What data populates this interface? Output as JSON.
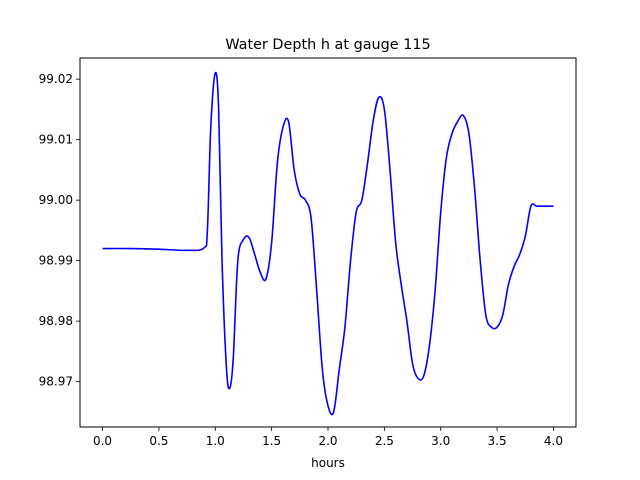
{
  "chart_data": {
    "type": "line",
    "title": "Water Depth h at gauge 115",
    "xlabel": "hours",
    "ylabel": "",
    "xlim": [
      -0.2,
      4.2
    ],
    "ylim": [
      98.9625,
      99.0235
    ],
    "xticks": [
      0.0,
      0.5,
      1.0,
      1.5,
      2.0,
      2.5,
      3.0,
      3.5,
      4.0
    ],
    "xtick_labels": [
      "0.0",
      "0.5",
      "1.0",
      "1.5",
      "2.0",
      "2.5",
      "3.0",
      "3.5",
      "4.0"
    ],
    "yticks": [
      98.97,
      98.98,
      98.99,
      99.0,
      99.01,
      99.02
    ],
    "ytick_labels": [
      "98.97",
      "98.98",
      "98.99",
      "99.00",
      "99.01",
      "99.02"
    ],
    "grid": false,
    "series": [
      {
        "color": "#0000ff",
        "x": [
          0.0,
          0.25,
          0.5,
          0.75,
          0.9,
          0.93,
          0.96,
          1.0,
          1.03,
          1.06,
          1.1,
          1.13,
          1.16,
          1.2,
          1.25,
          1.3,
          1.35,
          1.4,
          1.45,
          1.5,
          1.55,
          1.6,
          1.65,
          1.7,
          1.75,
          1.8,
          1.85,
          1.9,
          1.95,
          2.0,
          2.05,
          2.1,
          2.15,
          2.2,
          2.25,
          2.3,
          2.35,
          2.4,
          2.45,
          2.5,
          2.55,
          2.6,
          2.65,
          2.7,
          2.75,
          2.8,
          2.85,
          2.9,
          2.95,
          3.0,
          3.05,
          3.1,
          3.15,
          3.2,
          3.25,
          3.3,
          3.35,
          3.4,
          3.45,
          3.5,
          3.55,
          3.6,
          3.65,
          3.7,
          3.75,
          3.8,
          3.85,
          3.9,
          3.95,
          4.0
        ],
        "values": [
          98.992,
          98.992,
          98.9919,
          98.9917,
          98.9921,
          98.995,
          99.012,
          99.021,
          99.015,
          98.99,
          98.972,
          98.969,
          98.974,
          98.99,
          98.9935,
          98.9938,
          98.991,
          98.988,
          98.987,
          98.993,
          99.006,
          99.012,
          99.013,
          99.005,
          99.001,
          99.0,
          98.997,
          98.985,
          98.972,
          98.966,
          98.965,
          98.972,
          98.979,
          98.99,
          98.998,
          99.0,
          99.006,
          99.013,
          99.017,
          99.015,
          99.005,
          98.993,
          98.986,
          98.98,
          98.973,
          98.9705,
          98.971,
          98.976,
          98.985,
          98.998,
          99.007,
          99.011,
          99.013,
          99.014,
          99.011,
          99.002,
          98.99,
          98.981,
          98.979,
          98.979,
          98.981,
          98.986,
          98.989,
          98.991,
          98.994,
          98.999,
          98.999,
          98.999,
          98.999,
          98.999
        ]
      }
    ]
  }
}
